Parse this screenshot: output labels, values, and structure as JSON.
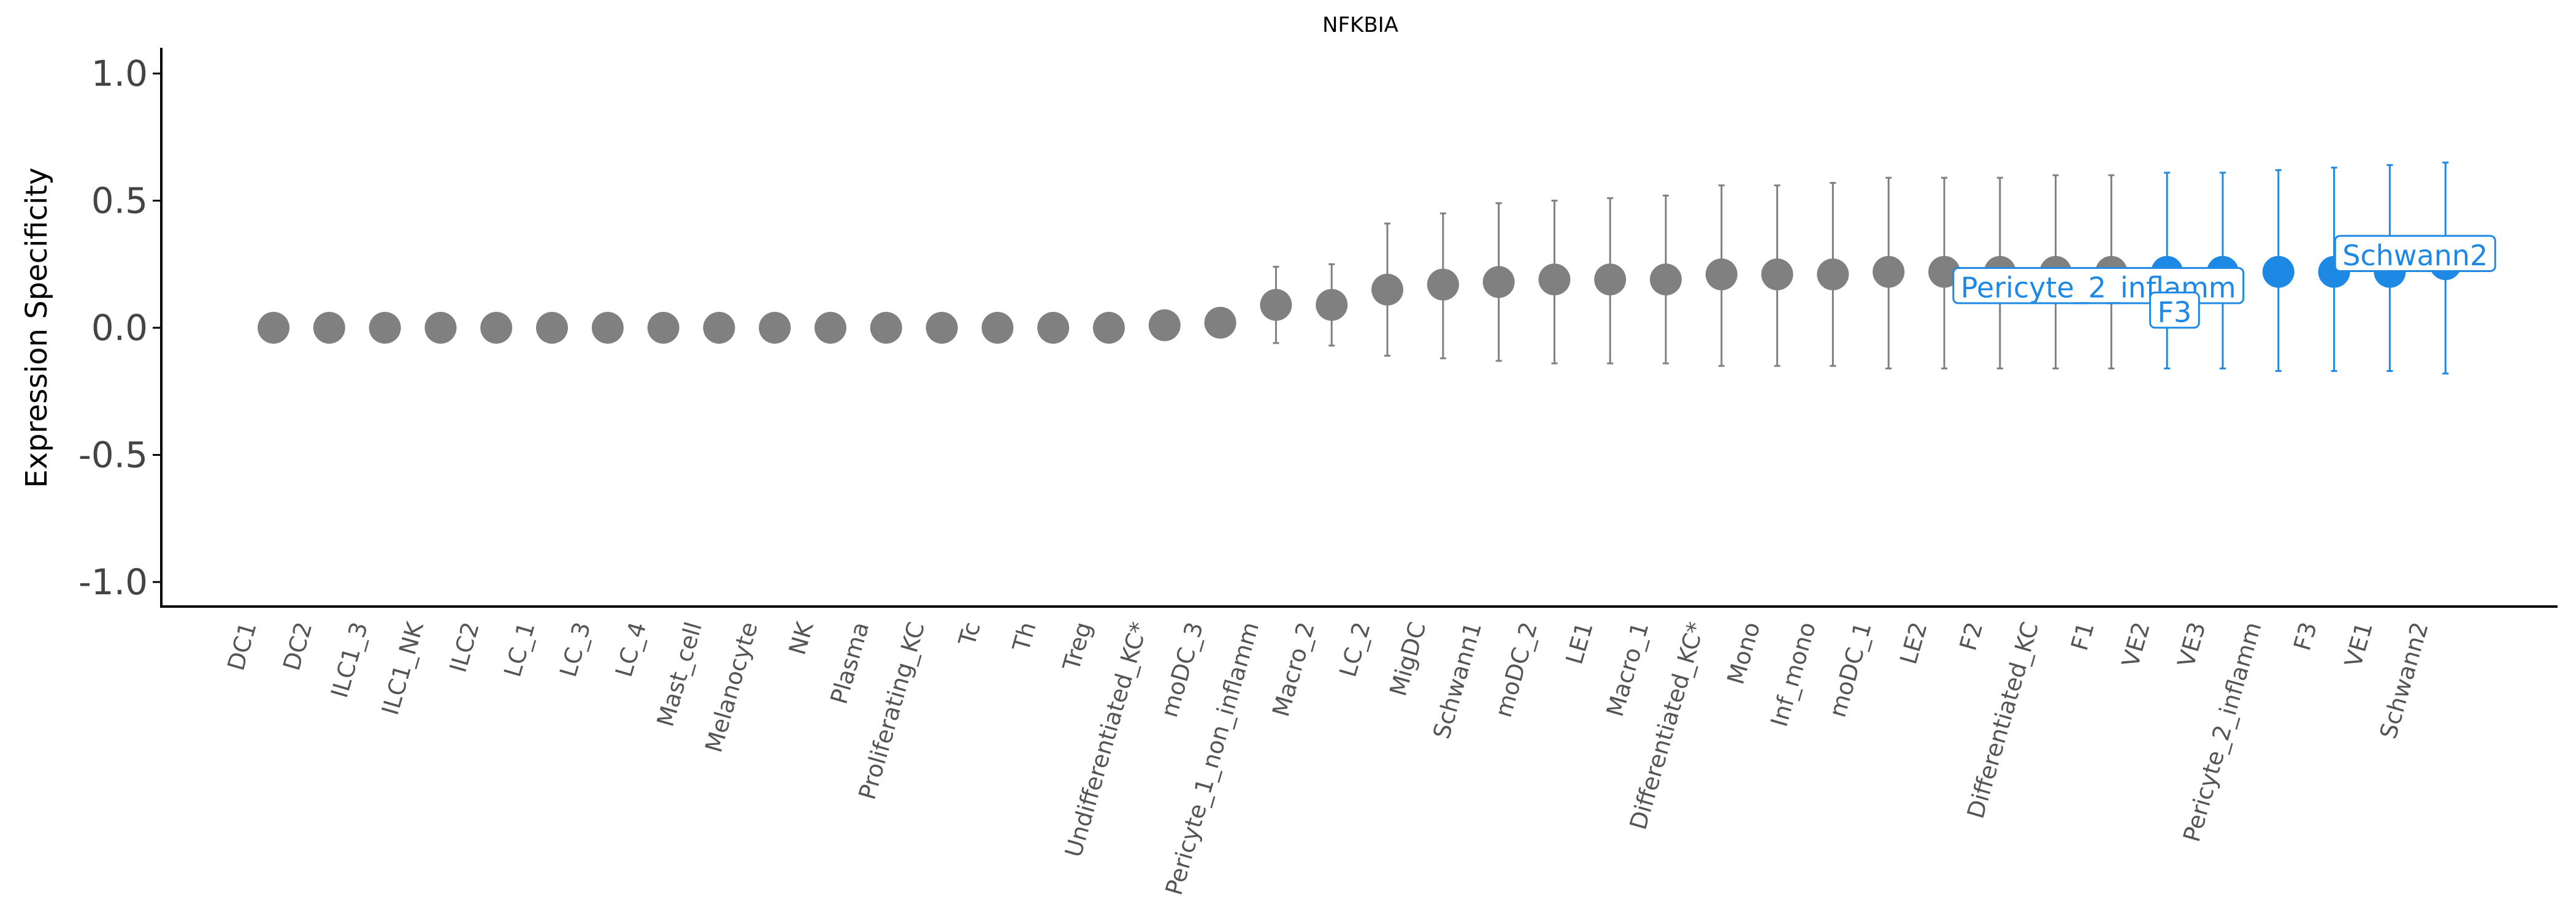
{
  "chart_data": {
    "type": "scatter",
    "title": "NFKBIA",
    "xlabel": "",
    "ylabel": "Expression Specificity",
    "ylim": [
      -1.1,
      1.1
    ],
    "yticks": [
      1.0,
      0.5,
      0.0,
      -0.5,
      -1.0
    ],
    "ytick_labels": [
      "1.0",
      "0.5",
      "0.0",
      "-0.5",
      "-1.0"
    ],
    "grid": false,
    "colors": {
      "default": "#808080",
      "highlight": "#1e88e5",
      "axis": "#000000",
      "label_text": "#555555"
    },
    "points": [
      {
        "label": "DC1",
        "y": 0.0
      },
      {
        "label": "DC2",
        "y": 0.0
      },
      {
        "label": "ILC1_3",
        "y": 0.0
      },
      {
        "label": "ILC1_NK",
        "y": 0.0
      },
      {
        "label": "ILC2",
        "y": 0.0
      },
      {
        "label": "LC_1",
        "y": 0.0
      },
      {
        "label": "LC_3",
        "y": 0.0
      },
      {
        "label": "LC_4",
        "y": 0.0
      },
      {
        "label": "Mast_cell",
        "y": 0.0
      },
      {
        "label": "Melanocyte",
        "y": 0.0
      },
      {
        "label": "NK",
        "y": 0.0
      },
      {
        "label": "Plasma",
        "y": 0.0
      },
      {
        "label": "Proliferating_KC",
        "y": 0.0
      },
      {
        "label": "Tc",
        "y": 0.0
      },
      {
        "label": "Th",
        "y": 0.0
      },
      {
        "label": "Treg",
        "y": 0.0
      },
      {
        "label": "Undifferentiated_KC*",
        "y": 0.01
      },
      {
        "label": "moDC_3",
        "y": 0.02
      },
      {
        "label": "Pericyte_1_non_inflamm",
        "y": 0.09,
        "lo": -0.06,
        "hi": 0.24
      },
      {
        "label": "Macro_2",
        "y": 0.09,
        "lo": -0.07,
        "hi": 0.25
      },
      {
        "label": "LC_2",
        "y": 0.15,
        "lo": -0.11,
        "hi": 0.41
      },
      {
        "label": "MigDC",
        "y": 0.17,
        "lo": -0.12,
        "hi": 0.45
      },
      {
        "label": "Schwann1",
        "y": 0.18,
        "lo": -0.13,
        "hi": 0.49
      },
      {
        "label": "moDC_2",
        "y": 0.19,
        "lo": -0.14,
        "hi": 0.5
      },
      {
        "label": "LE1",
        "y": 0.19,
        "lo": -0.14,
        "hi": 0.51
      },
      {
        "label": "Macro_1",
        "y": 0.19,
        "lo": -0.14,
        "hi": 0.52
      },
      {
        "label": "Differentiated_KC*",
        "y": 0.21,
        "lo": -0.15,
        "hi": 0.56
      },
      {
        "label": "Mono",
        "y": 0.21,
        "lo": -0.15,
        "hi": 0.56
      },
      {
        "label": "Inf_mono",
        "y": 0.21,
        "lo": -0.15,
        "hi": 0.57
      },
      {
        "label": "moDC_1",
        "y": 0.22,
        "lo": -0.16,
        "hi": 0.59
      },
      {
        "label": "LE2",
        "y": 0.22,
        "lo": -0.16,
        "hi": 0.59
      },
      {
        "label": "F2",
        "y": 0.22,
        "lo": -0.16,
        "hi": 0.59
      },
      {
        "label": "Differentiated_KC",
        "y": 0.22,
        "lo": -0.16,
        "hi": 0.6
      },
      {
        "label": "F1",
        "y": 0.22,
        "lo": -0.16,
        "hi": 0.6
      },
      {
        "label": "VE2",
        "y": 0.22,
        "lo": -0.16,
        "hi": 0.61,
        "highlight": true
      },
      {
        "label": "VE3",
        "y": 0.22,
        "lo": -0.16,
        "hi": 0.61,
        "highlight": true
      },
      {
        "label": "Pericyte_2_inflamm",
        "y": 0.22,
        "lo": -0.17,
        "hi": 0.62,
        "highlight": true
      },
      {
        "label": "F3",
        "y": 0.22,
        "lo": -0.17,
        "hi": 0.63,
        "highlight": true
      },
      {
        "label": "VE1",
        "y": 0.22,
        "lo": -0.17,
        "hi": 0.64,
        "highlight": true
      },
      {
        "label": "Schwann2",
        "y": 0.25,
        "lo": -0.18,
        "hi": 0.65,
        "highlight": true
      }
    ],
    "annotations": [
      {
        "text": "Pericyte_2_inflamm",
        "target": "Pericyte_2_inflamm"
      },
      {
        "text": "F3",
        "target": "F3"
      },
      {
        "text": "Schwann2",
        "target": "Schwann2"
      }
    ]
  }
}
